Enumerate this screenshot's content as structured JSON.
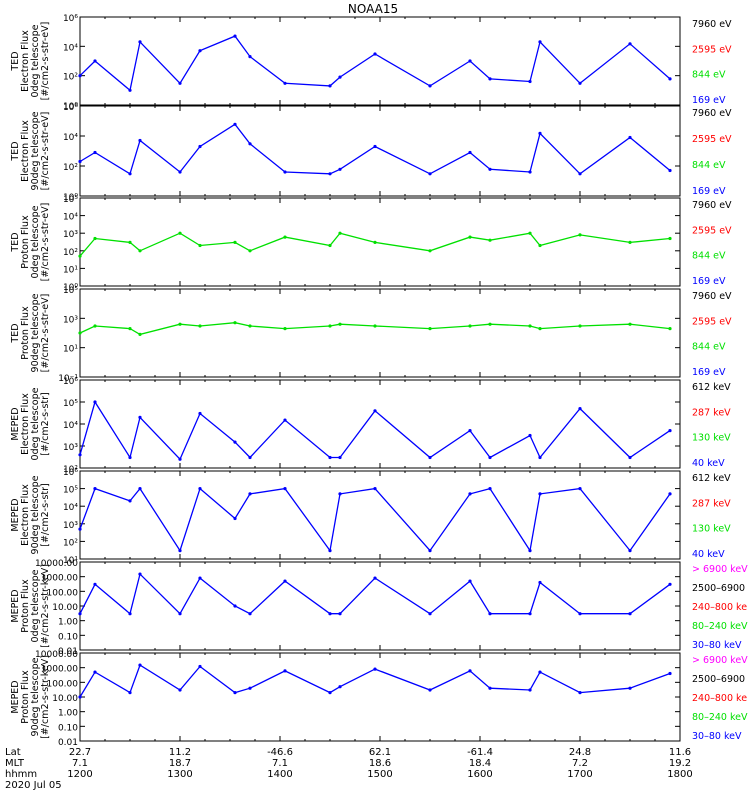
{
  "title": "NOAA15",
  "date_label": "2020 Jul 05",
  "colors": {
    "black": "#000000",
    "blue": "#0000ff",
    "green": "#00e000",
    "red": "#ff0000",
    "magenta": "#ff00ff",
    "line": "#0000ff"
  },
  "footer": {
    "row_labels": [
      "Lat",
      "MLT",
      "hhmm"
    ],
    "lat": [
      "22.7",
      "11.2",
      "-46.6",
      "62.1",
      "-61.4",
      "24.8",
      "11.6"
    ],
    "mlt": [
      "7.1",
      "18.7",
      "7.1",
      "18.6",
      "18.4",
      "7.2",
      "19.2"
    ],
    "hhmm": [
      "1200",
      "1300",
      "1400",
      "1500",
      "1600",
      "1700",
      "1800"
    ]
  },
  "chart_data": [
    {
      "type": "line",
      "panel": "ted-electron-0deg",
      "ylabel_lines": [
        "TED",
        "Electron Flux",
        "0deg telescope",
        "[#/cm2-s-str-eV]"
      ],
      "yscale": "log",
      "ylim": [
        1,
        1000000
      ],
      "ticks": [
        "10⁰",
        "10²",
        "10⁴",
        "10⁶"
      ],
      "legend": [
        {
          "text": "7960 eV",
          "color": "#000000"
        },
        {
          "text": "2595 eV",
          "color": "#ff0000"
        },
        {
          "text": "844 eV",
          "color": "#00e000"
        },
        {
          "text": "169 eV",
          "color": "#0000ff"
        }
      ],
      "x_hours": [
        12,
        12.15,
        12.5,
        12.6,
        13,
        13.2,
        13.55,
        13.7,
        14.05,
        14.5,
        14.6,
        14.95,
        15.5,
        15.9,
        16.1,
        16.5,
        16.6,
        17,
        17.5,
        17.9
      ],
      "series": [
        {
          "color": "#0000ff",
          "values": [
            100,
            1000,
            10,
            20000,
            30,
            5000,
            50000,
            2000,
            30,
            20,
            80,
            3000,
            20,
            1000,
            60,
            40,
            20000,
            30,
            15000,
            60
          ]
        }
      ]
    },
    {
      "type": "line",
      "panel": "ted-electron-90deg",
      "ylabel_lines": [
        "TED",
        "Electron Flux",
        "90deg telescope",
        "[#/cm2-s-str-eV]"
      ],
      "yscale": "log",
      "ylim": [
        1,
        1000000
      ],
      "ticks": [
        "10⁰",
        "10²",
        "10⁴",
        "10⁶"
      ],
      "legend": [
        {
          "text": "7960 eV",
          "color": "#000000"
        },
        {
          "text": "2595 eV",
          "color": "#ff0000"
        },
        {
          "text": "844 eV",
          "color": "#00e000"
        },
        {
          "text": "169 eV",
          "color": "#0000ff"
        }
      ],
      "x_hours": [
        12,
        12.15,
        12.5,
        12.6,
        13,
        13.2,
        13.55,
        13.7,
        14.05,
        14.5,
        14.6,
        14.95,
        15.5,
        15.9,
        16.1,
        16.5,
        16.6,
        17,
        17.5,
        17.9
      ],
      "series": [
        {
          "color": "#0000ff",
          "values": [
            200,
            800,
            30,
            5000,
            40,
            2000,
            60000,
            3000,
            40,
            30,
            60,
            2000,
            30,
            800,
            60,
            40,
            15000,
            30,
            8000,
            50
          ]
        }
      ]
    },
    {
      "type": "line",
      "panel": "ted-proton-0deg",
      "ylabel_lines": [
        "TED",
        "Proton Flux",
        "0deg telescope",
        "[#/cm2-s-str-eV]"
      ],
      "yscale": "log",
      "ylim": [
        1,
        100000
      ],
      "ticks": [
        "10⁰",
        "10¹",
        "10²",
        "10³",
        "10⁴",
        "10⁵"
      ],
      "legend": [
        {
          "text": "7960 eV",
          "color": "#000000"
        },
        {
          "text": "2595 eV",
          "color": "#ff0000"
        },
        {
          "text": "844 eV",
          "color": "#00e000"
        },
        {
          "text": "169 eV",
          "color": "#0000ff"
        }
      ],
      "x_hours": [
        12,
        12.15,
        12.5,
        12.6,
        13,
        13.2,
        13.55,
        13.7,
        14.05,
        14.5,
        14.6,
        14.95,
        15.5,
        15.9,
        16.1,
        16.5,
        16.6,
        17,
        17.5,
        17.9
      ],
      "series": [
        {
          "color": "#00e000",
          "values": [
            50,
            500,
            300,
            100,
            1000,
            200,
            300,
            100,
            600,
            200,
            1000,
            300,
            100,
            600,
            400,
            1000,
            200,
            800,
            300,
            500
          ]
        }
      ]
    },
    {
      "type": "line",
      "panel": "ted-proton-90deg",
      "ylabel_lines": [
        "TED",
        "Proton Flux",
        "90deg telescope",
        "[#/cm2-s-str-eV]"
      ],
      "yscale": "log",
      "ylim": [
        0.1,
        100000
      ],
      "ticks": [
        "10⁻¹",
        "10¹",
        "10³",
        "10⁵"
      ],
      "legend": [
        {
          "text": "7960 eV",
          "color": "#000000"
        },
        {
          "text": "2595 eV",
          "color": "#ff0000"
        },
        {
          "text": "844 eV",
          "color": "#00e000"
        },
        {
          "text": "169 eV",
          "color": "#0000ff"
        }
      ],
      "x_hours": [
        12,
        12.15,
        12.5,
        12.6,
        13,
        13.2,
        13.55,
        13.7,
        14.05,
        14.5,
        14.6,
        14.95,
        15.5,
        15.9,
        16.1,
        16.5,
        16.6,
        17,
        17.5,
        17.9
      ],
      "series": [
        {
          "color": "#00e000",
          "values": [
            100,
            300,
            200,
            80,
            400,
            300,
            500,
            300,
            200,
            300,
            400,
            300,
            200,
            300,
            400,
            300,
            200,
            300,
            400,
            200
          ]
        }
      ]
    },
    {
      "type": "line",
      "panel": "meped-electron-0deg",
      "ylabel_lines": [
        "MEPED",
        "Electron Flux",
        "0deg telescope",
        "[#/cm2-s-str]"
      ],
      "yscale": "log",
      "ylim": [
        100,
        1000000
      ],
      "ticks": [
        "10²",
        "10³",
        "10⁴",
        "10⁵",
        "10⁶"
      ],
      "legend": [
        {
          "text": "612 keV",
          "color": "#000000"
        },
        {
          "text": "287 keV",
          "color": "#ff0000"
        },
        {
          "text": "130 keV",
          "color": "#00e000"
        },
        {
          "text": "40 keV",
          "color": "#0000ff"
        }
      ],
      "x_hours": [
        12,
        12.15,
        12.5,
        12.6,
        13,
        13.2,
        13.55,
        13.7,
        14.05,
        14.5,
        14.6,
        14.95,
        15.5,
        15.9,
        16.1,
        16.5,
        16.6,
        17,
        17.5,
        17.9
      ],
      "series": [
        {
          "color": "#0000ff",
          "values": [
            400,
            100000,
            300,
            20000,
            250,
            30000,
            1500,
            300,
            15000,
            300,
            300,
            40000,
            300,
            5000,
            300,
            3000,
            300,
            50000,
            300,
            5000
          ]
        }
      ]
    },
    {
      "type": "line",
      "panel": "meped-electron-90deg",
      "ylabel_lines": [
        "MEPED",
        "Electron Flux",
        "90deg telescope",
        "[#/cm2-s-str]"
      ],
      "yscale": "log",
      "ylim": [
        10,
        1000000
      ],
      "ticks": [
        "10¹",
        "10²",
        "10³",
        "10⁴",
        "10⁵",
        "10⁶"
      ],
      "legend": [
        {
          "text": "612 keV",
          "color": "#000000"
        },
        {
          "text": "287 keV",
          "color": "#ff0000"
        },
        {
          "text": "130 keV",
          "color": "#00e000"
        },
        {
          "text": "40 keV",
          "color": "#0000ff"
        }
      ],
      "x_hours": [
        12,
        12.15,
        12.5,
        12.6,
        13,
        13.2,
        13.55,
        13.7,
        14.05,
        14.5,
        14.6,
        14.95,
        15.5,
        15.9,
        16.1,
        16.5,
        16.6,
        17,
        17.5,
        17.9
      ],
      "series": [
        {
          "color": "#0000ff",
          "values": [
            500,
            100000,
            20000,
            100000,
            30,
            100000,
            2000,
            50000,
            100000,
            30,
            50000,
            100000,
            30,
            50000,
            100000,
            30,
            50000,
            100000,
            30,
            50000
          ]
        }
      ]
    },
    {
      "type": "line",
      "panel": "meped-proton-0deg",
      "ylabel_lines": [
        "MEPED",
        "Proton Flux",
        "0deg telescope",
        "[#/cm2-s-str-keV]"
      ],
      "yscale": "log",
      "ylim": [
        0.01,
        10000
      ],
      "ticks": [
        "0.01",
        "0.10",
        "1.00",
        "10.00",
        "100.00",
        "1000.00",
        "10000.00"
      ],
      "legend": [
        {
          "text": "> 6900 keV",
          "color": "#ff00ff"
        },
        {
          "text": "2500–6900",
          "color": "#000000"
        },
        {
          "text": "240–800 ke",
          "color": "#ff0000"
        },
        {
          "text": "80–240 keV",
          "color": "#00e000"
        },
        {
          "text": "30–80 keV",
          "color": "#0000ff"
        }
      ],
      "x_hours": [
        12,
        12.15,
        12.5,
        12.6,
        13,
        13.2,
        13.55,
        13.7,
        14.05,
        14.5,
        14.6,
        14.95,
        15.5,
        15.9,
        16.1,
        16.5,
        16.6,
        17,
        17.5,
        17.9
      ],
      "series": [
        {
          "color": "#0000ff",
          "values": [
            3,
            300,
            3,
            1500,
            3,
            800,
            10,
            3,
            500,
            3,
            3,
            800,
            3,
            500,
            3,
            3,
            400,
            3,
            3,
            300
          ]
        }
      ]
    },
    {
      "type": "line",
      "panel": "meped-proton-90deg",
      "ylabel_lines": [
        "MEPED",
        "Proton Flux",
        "90deg telescope",
        "[#/cm2-s-str-keV]"
      ],
      "yscale": "log",
      "ylim": [
        0.01,
        10000
      ],
      "ticks": [
        "0.01",
        "0.10",
        "1.00",
        "10.00",
        "100.00",
        "1000.00",
        "10000.00"
      ],
      "legend": [
        {
          "text": "> 6900 keV",
          "color": "#ff00ff"
        },
        {
          "text": "2500–6900",
          "color": "#000000"
        },
        {
          "text": "240–800 ke",
          "color": "#ff0000"
        },
        {
          "text": "80–240 keV",
          "color": "#00e000"
        },
        {
          "text": "30–80 keV",
          "color": "#0000ff"
        }
      ],
      "x_hours": [
        12,
        12.15,
        12.5,
        12.6,
        13,
        13.2,
        13.55,
        13.7,
        14.05,
        14.5,
        14.6,
        14.95,
        15.5,
        15.9,
        16.1,
        16.5,
        16.6,
        17,
        17.5,
        17.9
      ],
      "series": [
        {
          "color": "#0000ff",
          "values": [
            10,
            500,
            20,
            1500,
            30,
            1200,
            20,
            40,
            600,
            20,
            50,
            800,
            30,
            600,
            40,
            30,
            500,
            20,
            40,
            400
          ]
        }
      ]
    }
  ]
}
